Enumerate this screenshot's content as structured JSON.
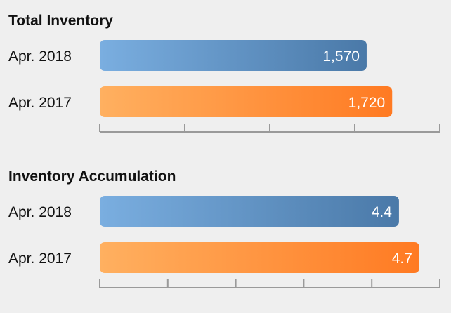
{
  "colors": {
    "background": "#efefef",
    "series_2018_light": "#7aaee0",
    "series_2018_dark": "#4a79a8",
    "series_2017_light": "#ffb060",
    "series_2017_dark": "#ff7a22",
    "axis": "#9a9a9a"
  },
  "chart_data": [
    {
      "type": "bar",
      "orientation": "horizontal",
      "title": "Total Inventory",
      "categories": [
        "Apr. 2018",
        "Apr. 2017"
      ],
      "values": [
        1570,
        1720
      ],
      "value_labels": [
        "1,570",
        "1,720"
      ],
      "xlim": [
        0,
        2000
      ],
      "tick_count": 5,
      "grid": false
    },
    {
      "type": "bar",
      "orientation": "horizontal",
      "title": "Inventory Accumulation",
      "categories": [
        "Apr. 2018",
        "Apr. 2017"
      ],
      "values": [
        4.4,
        4.7
      ],
      "value_labels": [
        "4.4",
        "4.7"
      ],
      "xlim": [
        0,
        5
      ],
      "tick_count": 6,
      "grid": false
    }
  ]
}
